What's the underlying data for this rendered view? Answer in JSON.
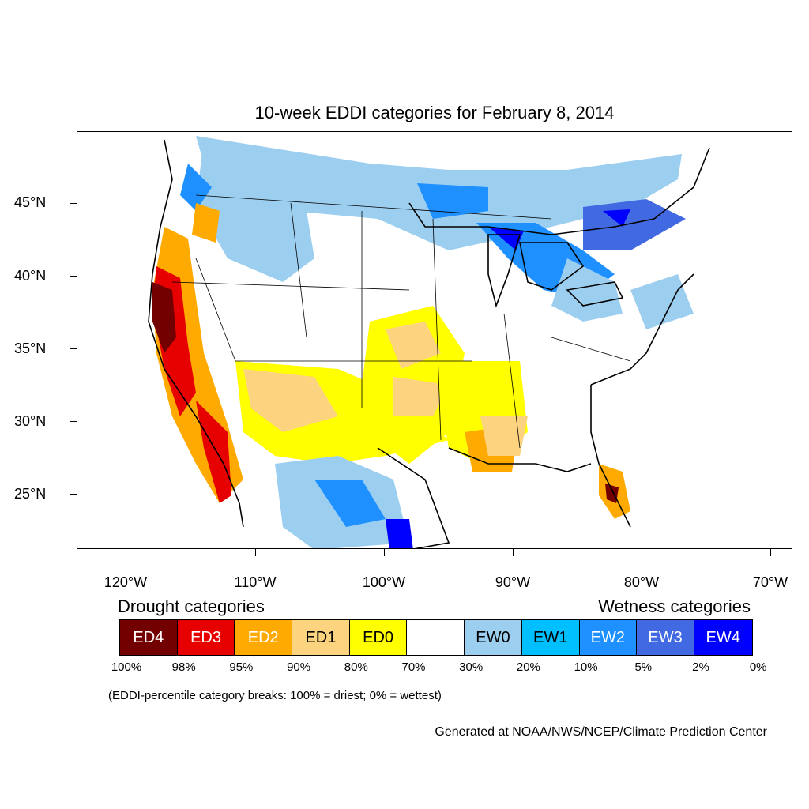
{
  "title": "10-week EDDI categories for February 8, 2014",
  "lat_labels": [
    "45°N",
    "40°N",
    "35°N",
    "30°N",
    "25°N"
  ],
  "lon_labels": [
    "120°W",
    "110°W",
    "100°W",
    "90°W",
    "80°W",
    "70°W"
  ],
  "legend": {
    "drought_title": "Drought categories",
    "wetness_title": "Wetness categories",
    "categories": [
      {
        "label": "ED4",
        "color": "#730000",
        "text_color": "#ffffff"
      },
      {
        "label": "ED3",
        "color": "#e60000",
        "text_color": "#ffffff"
      },
      {
        "label": "ED2",
        "color": "#ffaa00",
        "text_color": "#ffffff"
      },
      {
        "label": "ED1",
        "color": "#fcd37f",
        "text_color": "#000000"
      },
      {
        "label": "ED0",
        "color": "#ffff00",
        "text_color": "#000000"
      },
      {
        "label": "",
        "color": "#ffffff",
        "text_color": "#000000"
      },
      {
        "label": "EW0",
        "color": "#9ccef0",
        "text_color": "#000000"
      },
      {
        "label": "EW1",
        "color": "#00bfff",
        "text_color": "#000000"
      },
      {
        "label": "EW2",
        "color": "#1e90ff",
        "text_color": "#ffffff"
      },
      {
        "label": "EW3",
        "color": "#4169e1",
        "text_color": "#ffffff"
      },
      {
        "label": "EW4",
        "color": "#0000ff",
        "text_color": "#ffffff"
      }
    ],
    "percent_breaks": [
      "100%",
      "98%",
      "95%",
      "90%",
      "80%",
      "70%",
      "30%",
      "20%",
      "10%",
      "5%",
      "2%",
      "0%"
    ]
  },
  "note": "(EDDI-percentile category breaks: 100% = driest; 0% = wettest)",
  "credit": "Generated at NOAA/NWS/NCEP/Climate Prediction Center"
}
